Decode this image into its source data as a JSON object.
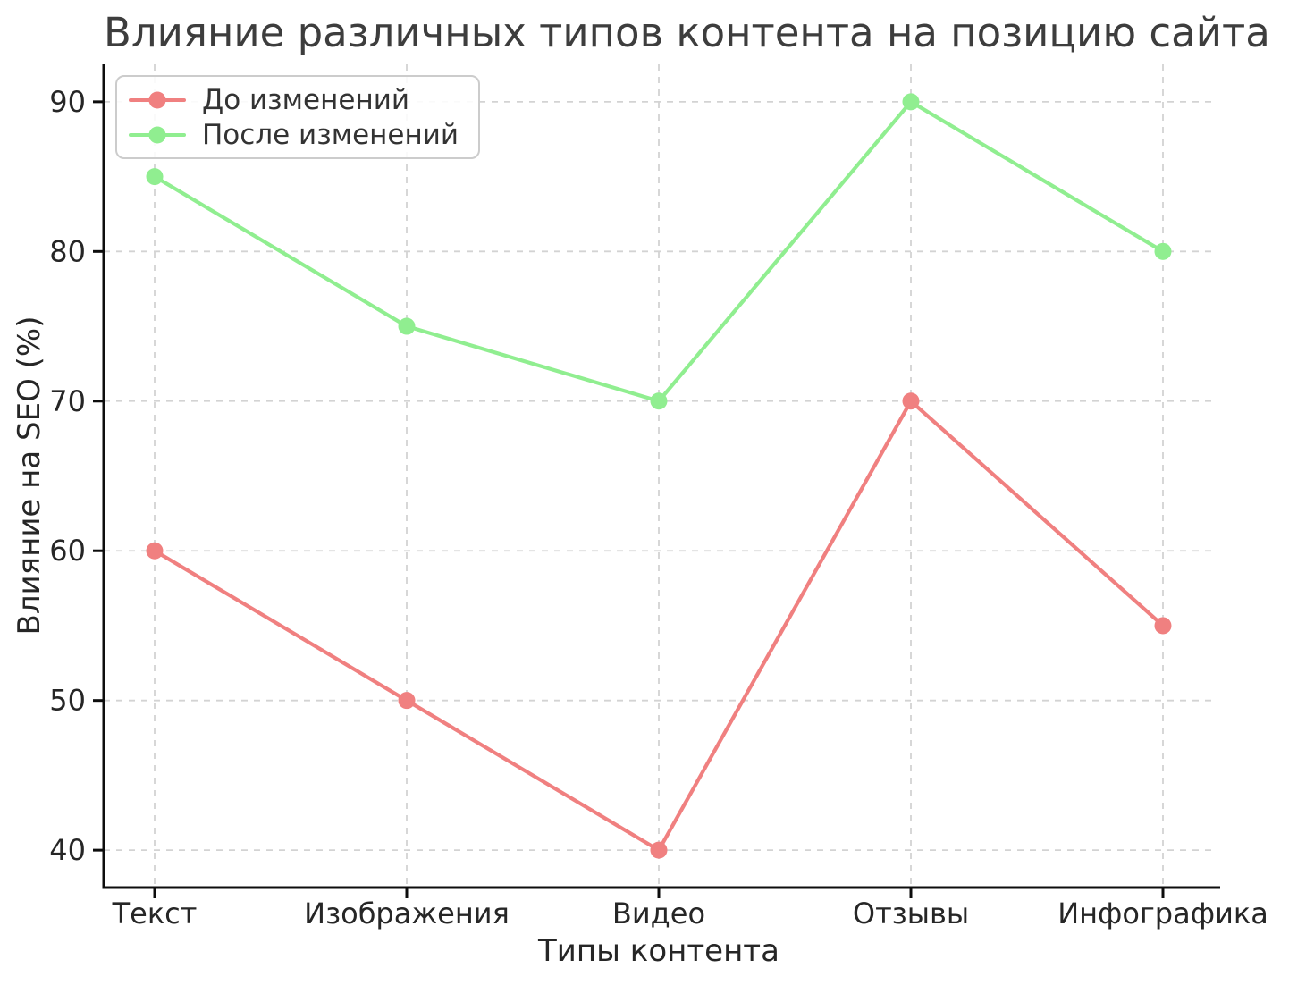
{
  "chart_data": {
    "type": "line",
    "title": "Влияние различных типов контента на позицию сайта",
    "xlabel": "Типы контента",
    "ylabel": "Влияние на SEO (%)",
    "categories": [
      "Текст",
      "Изображения",
      "Видео",
      "Отзывы",
      "Инфографика"
    ],
    "series": [
      {
        "name": "До изменений",
        "color": "#F08080",
        "values": [
          60,
          50,
          40,
          70,
          55
        ]
      },
      {
        "name": "После изменений",
        "color": "#90EE90",
        "values": [
          85,
          75,
          70,
          90,
          80
        ]
      }
    ],
    "yticks": [
      40,
      50,
      60,
      70,
      80,
      90
    ],
    "ylim": [
      37.5,
      92.5
    ],
    "grid": true,
    "grid_style": "dashed",
    "legend_position": "upper left",
    "colors": {
      "grid": "#d3d3d3",
      "spine": "#0d0d0d",
      "tick_label": "#262626",
      "title": "#3d3d3d",
      "legend_border": "#cccccc"
    }
  }
}
